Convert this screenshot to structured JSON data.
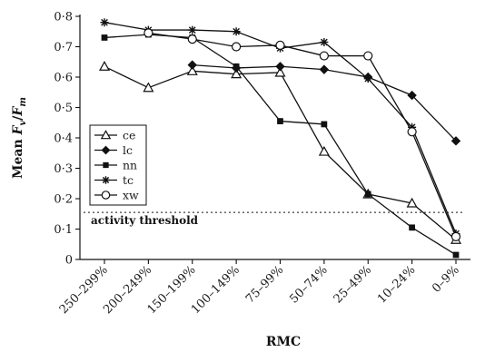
{
  "chart_data": {
    "type": "line",
    "title": "",
    "xlabel": "RMC",
    "ylabel": {
      "prefix": "Mean ",
      "F": "F",
      "v_sub": "v",
      "slash": "/",
      "m_sub": "m"
    },
    "categories": [
      "250–299%",
      "200–249%",
      "150–199%",
      "100–149%",
      "75–99%",
      "50–74%",
      "25–49%",
      "10–24%",
      "0–9%"
    ],
    "ylim": [
      0,
      0.8
    ],
    "yticks": [
      {
        "value": 0,
        "label": "0"
      },
      {
        "value": 0.1,
        "label": "0·1"
      },
      {
        "value": 0.2,
        "label": "0·2"
      },
      {
        "value": 0.3,
        "label": "0·3"
      },
      {
        "value": 0.4,
        "label": "0·4"
      },
      {
        "value": 0.5,
        "label": "0·5"
      },
      {
        "value": 0.6,
        "label": "0·6"
      },
      {
        "value": 0.7,
        "label": "0·7"
      },
      {
        "value": 0.8,
        "label": "0·8"
      }
    ],
    "grid": false,
    "legend_position": "left-middle",
    "series": [
      {
        "name": "ce",
        "marker": "triangle-open",
        "values": [
          0.635,
          0.565,
          0.62,
          0.61,
          0.615,
          0.355,
          0.215,
          0.185,
          0.065
        ]
      },
      {
        "name": "lc",
        "marker": "diamond-filled",
        "values": [
          null,
          null,
          0.64,
          0.63,
          0.635,
          0.625,
          0.6,
          0.54,
          0.39
        ]
      },
      {
        "name": "nn",
        "marker": "square-filled",
        "values": [
          0.73,
          0.74,
          0.73,
          0.635,
          0.455,
          0.445,
          0.215,
          0.105,
          0.015
        ]
      },
      {
        "name": "tc",
        "marker": "star",
        "values": [
          0.78,
          0.755,
          0.755,
          0.75,
          0.695,
          0.715,
          0.595,
          0.435,
          0.085
        ]
      },
      {
        "name": "xw",
        "marker": "circle-open",
        "values": [
          null,
          0.745,
          0.725,
          0.7,
          0.705,
          0.67,
          0.67,
          0.42,
          0.075
        ]
      }
    ],
    "threshold": {
      "value": 0.155,
      "label": "activity threshold"
    }
  }
}
